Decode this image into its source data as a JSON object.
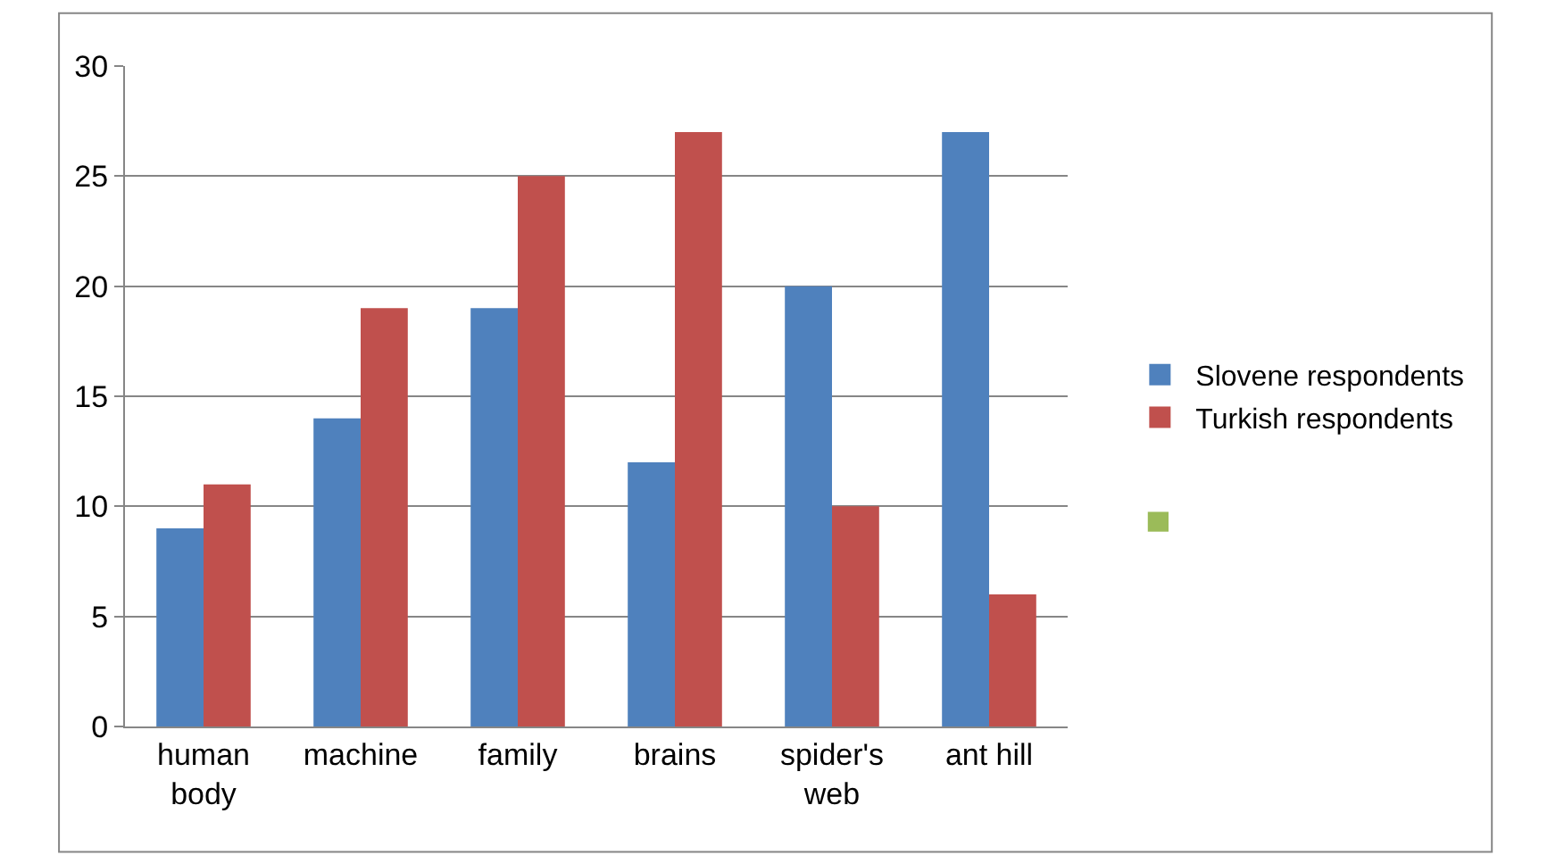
{
  "chart_data": {
    "type": "bar",
    "categories": [
      "human body",
      "machine",
      "family",
      "brains",
      "spider's web",
      "ant hill"
    ],
    "series": [
      {
        "name": "Slovene respondents",
        "color": "#4f81bd",
        "values": [
          9,
          14,
          19,
          12,
          20,
          27
        ]
      },
      {
        "name": "Turkish respondents",
        "color": "#c0504d",
        "values": [
          11,
          19,
          25,
          27,
          10,
          6
        ]
      }
    ],
    "ylim": [
      0,
      30
    ],
    "yticks": [
      0,
      5,
      10,
      15,
      20,
      25,
      30
    ],
    "grid": "y",
    "legend": "right"
  }
}
